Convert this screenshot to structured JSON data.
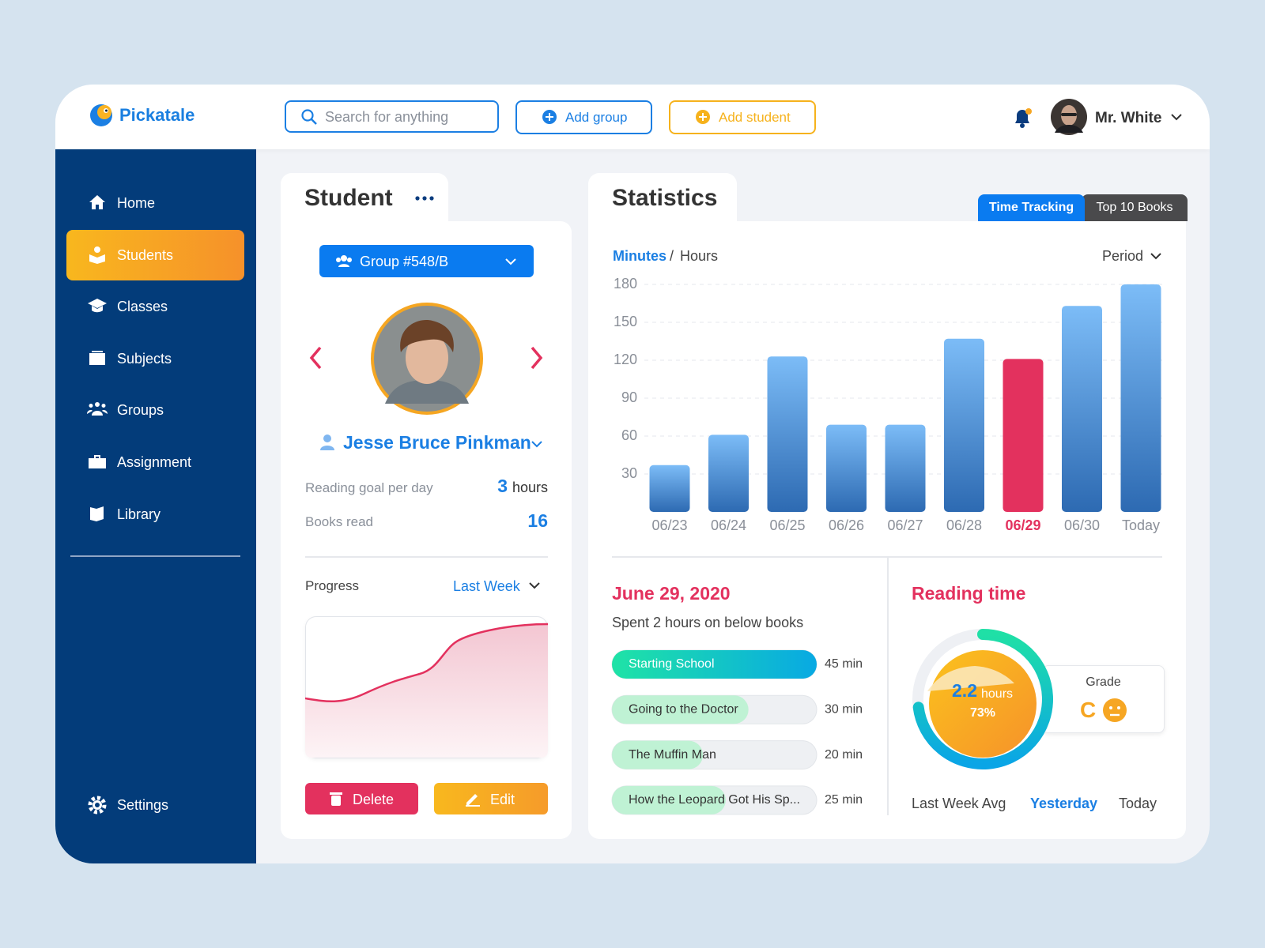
{
  "header": {
    "brand": "Pickatale",
    "search_placeholder": "Search for anything",
    "add_group": "Add group",
    "add_student": "Add student",
    "user": "Mr. White"
  },
  "sidebar": {
    "items": [
      "Home",
      "Students",
      "Classes",
      "Subjects",
      "Groups",
      "Assignment",
      "Library"
    ],
    "active": 1,
    "settings": "Settings"
  },
  "student": {
    "title": "Student",
    "group": "Group #548/B",
    "name": "Jesse Bruce Pinkman",
    "goal_label": "Reading goal per day",
    "goal_value": 3,
    "goal_unit": "hours",
    "books_label": "Books read",
    "books_value": 16,
    "progress_label": "Progress",
    "progress_period": "Last Week",
    "delete": "Delete",
    "edit": "Edit"
  },
  "statistics": {
    "title": "Statistics",
    "tabs": [
      "Time Tracking",
      "Top 10 Books"
    ],
    "active_tab": 0,
    "unit_active": "Minutes",
    "unit_separator": "/",
    "unit_other": "Hours",
    "period": "Period",
    "chart": {
      "type": "bar",
      "categories": [
        "06/23",
        "06/24",
        "06/25",
        "06/26",
        "06/27",
        "06/28",
        "06/29",
        "06/30",
        "Today"
      ],
      "values": [
        37,
        61,
        123,
        69,
        69,
        137,
        121,
        163,
        180
      ],
      "ylim": [
        0,
        180
      ],
      "yticks": [
        30,
        60,
        90,
        120,
        150,
        180
      ],
      "grid": true,
      "bar_gradient": [
        "#7cbcf7",
        "#2d6ab2"
      ],
      "highlight_index": 6,
      "highlight_color": "#e3315e"
    }
  },
  "day_detail": {
    "date": "June 29, 2020",
    "summary": "Spent 2 hours on below books",
    "books": {
      "titles": [
        "Starting School",
        "Going to the Doctor",
        "The Muffin Man",
        "How the Leopard Got His Sp..."
      ],
      "values": [
        45,
        30,
        20,
        25
      ],
      "value_labels": [
        "45 min",
        "30 min",
        "20 min",
        "25 min"
      ]
    }
  },
  "reading_time": {
    "title": "Reading time",
    "hours": 2.2,
    "hours_unit": "hours",
    "percent": 73,
    "percent_label": "73%",
    "grade_label": "Grade",
    "grade": "C",
    "tabs": [
      "Last Week Avg",
      "Yesterday",
      "Today"
    ],
    "active_tab": 1
  }
}
